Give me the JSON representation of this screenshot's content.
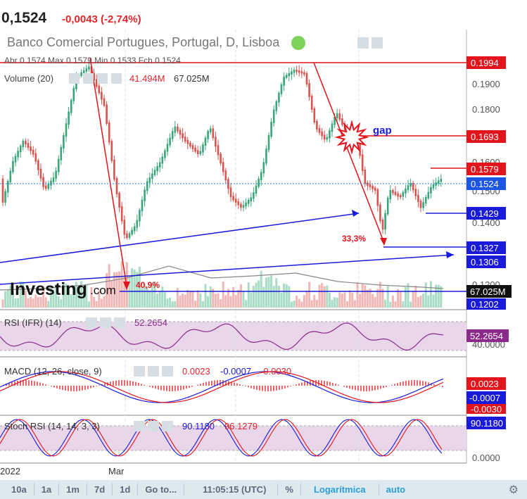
{
  "header": {
    "price": "0,1524",
    "change": "-0,0043 (-2,74%)"
  },
  "legend": {
    "title": "Banco Comercial Portugues, Portugal, D, Lisboa",
    "ohlc": "Abr 0.1574  Max 0.1579  Min 0.1533  Fch 0.1524",
    "volume_label": "Volume (20)",
    "volume_v1": "41.494M",
    "volume_v2": "67.025M"
  },
  "watermark": {
    "brand": "Investing",
    "suffix": ".com"
  },
  "annotations": {
    "gap": "gap",
    "drop1": "40,9%",
    "drop2": "33,3%"
  },
  "price_axis": {
    "ticks": [
      "0.1900",
      "0.1800",
      "0.1600",
      "0.1500",
      "0.1400",
      "0.1200"
    ],
    "tags": [
      {
        "label": "0.1994",
        "kind": "red"
      },
      {
        "label": "0.1693",
        "kind": "red"
      },
      {
        "label": "0.1579",
        "kind": "red"
      },
      {
        "label": "0.1524",
        "kind": "blue"
      },
      {
        "label": "0.1429",
        "kind": "blue"
      },
      {
        "label": "0.1327",
        "kind": "blue"
      },
      {
        "label": "0.1306",
        "kind": "blue"
      },
      {
        "label": "67.025M",
        "kind": "black"
      },
      {
        "label": "0.1202",
        "kind": "blue"
      }
    ]
  },
  "rsi": {
    "label": "RSI (IFR) (14)",
    "value": "52.2654",
    "axis_tick": "40.0000",
    "tag": "52.2654"
  },
  "macd": {
    "label": "MACD (12, 26, close, 9)",
    "v1": "0.0023",
    "v2": "-0.0007",
    "v3": "-0.0030",
    "tag1": "0.0023",
    "tag2": "-0.0007",
    "tag3": "-0.0030"
  },
  "stoch": {
    "label": "Stoch RSI (14, 14, 3, 3)",
    "v1": "90.1180",
    "v2": "96.1279",
    "tag": "90.1180",
    "axis_tick": "0.0000"
  },
  "time_axis": {
    "left": "2022",
    "mar": "Mar"
  },
  "bottombar": {
    "items": [
      "10a",
      "1a",
      "1m",
      "7d",
      "1d",
      "Go to...",
      "11:05:15 (UTC)",
      "%",
      "Logarítmica",
      "auto"
    ]
  },
  "colors": {
    "up": "#3aa57a",
    "down": "#d9534f",
    "red_line": "#e3141c",
    "blue_line": "#1a1adb"
  }
}
